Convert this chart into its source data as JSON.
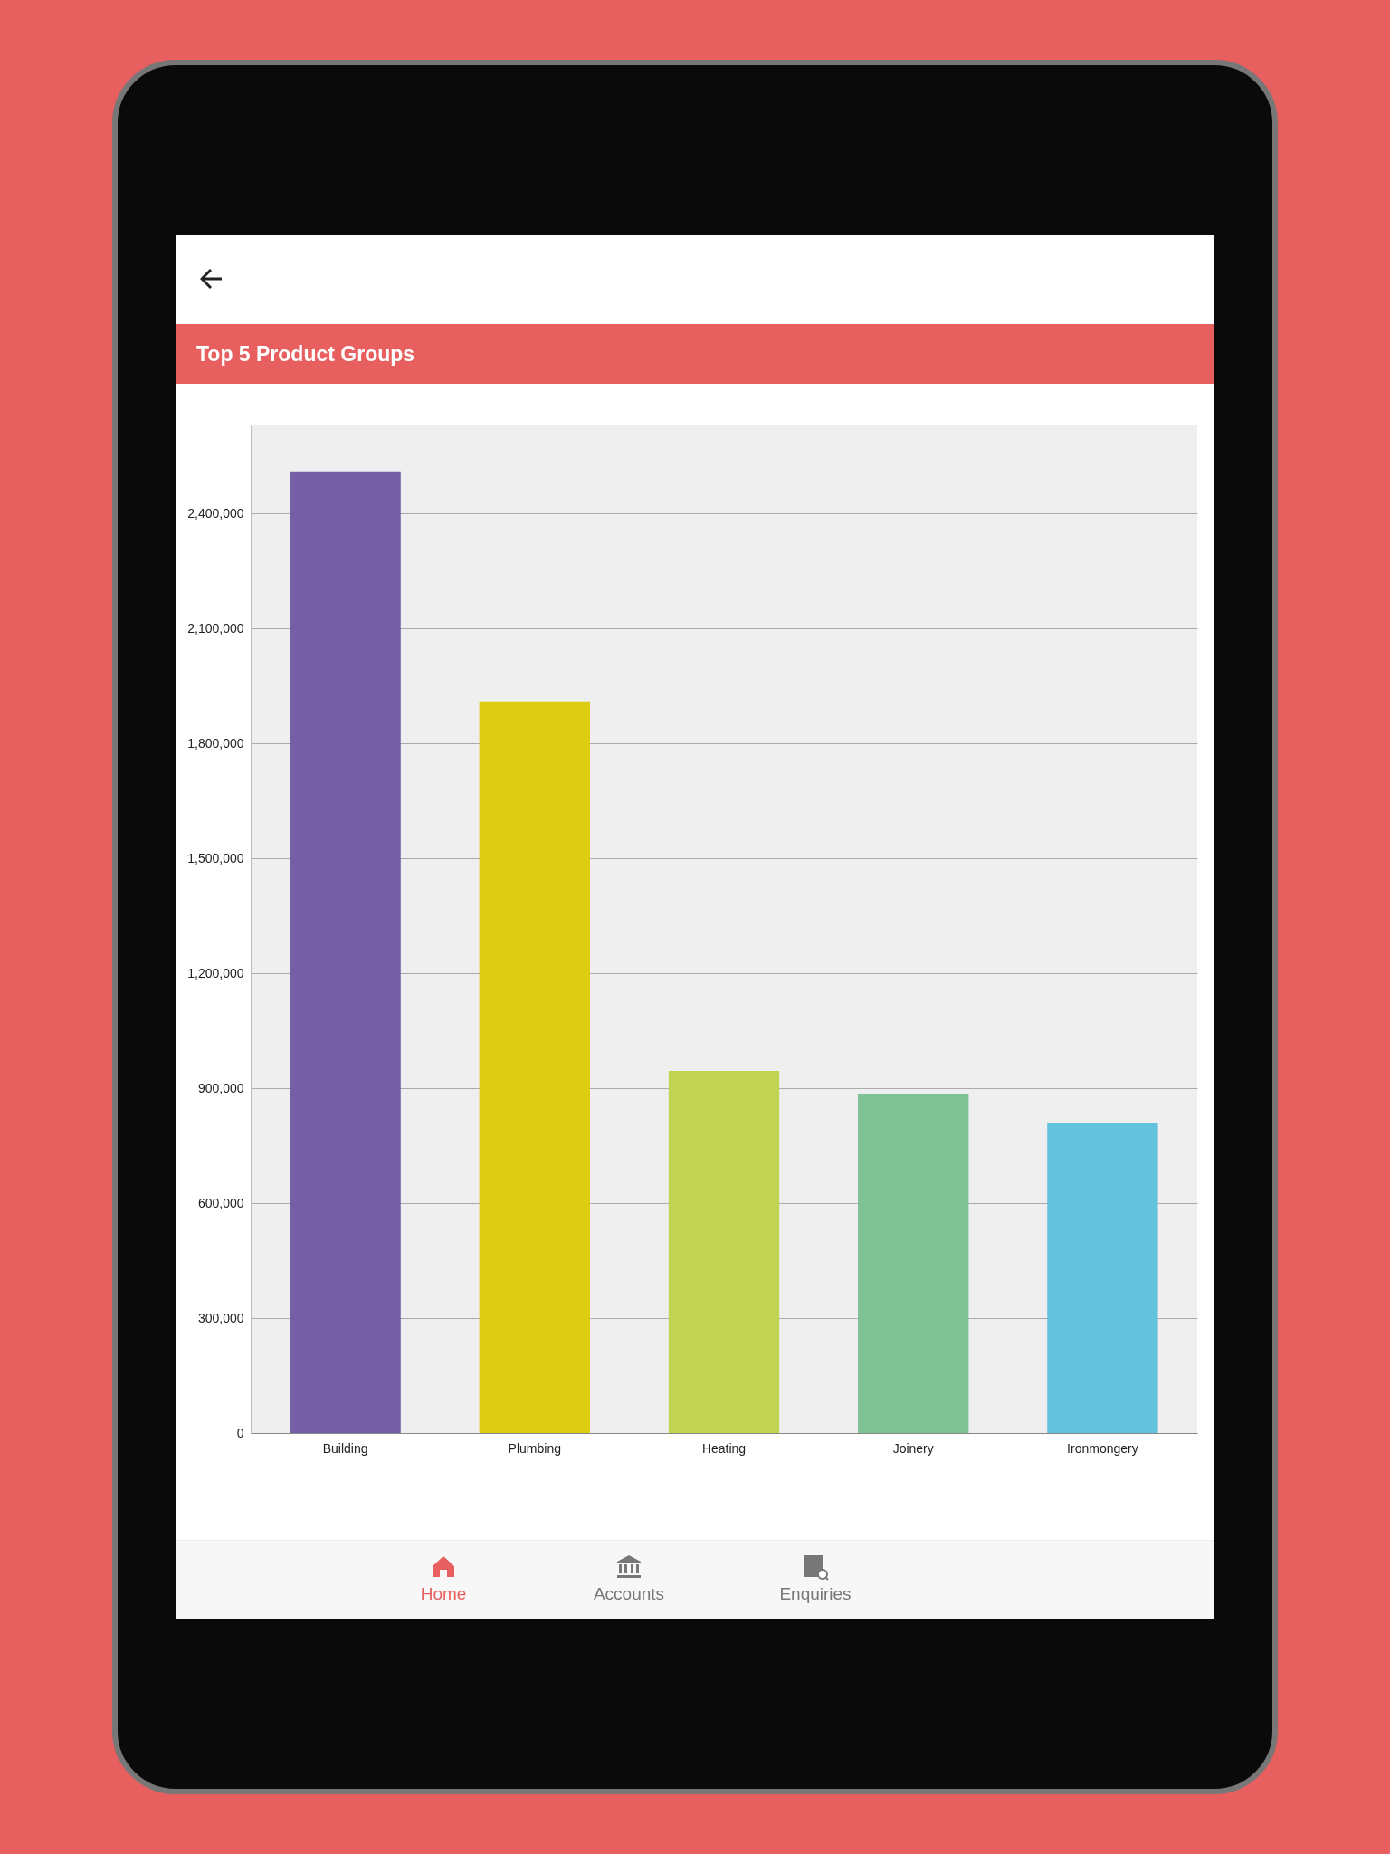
{
  "chart_data": {
    "type": "bar",
    "title": "Top 5 Product Groups",
    "categories": [
      "Building",
      "Plumbing",
      "Heating",
      "Joinery",
      "Ironmongery"
    ],
    "values": [
      2510000,
      1910000,
      945000,
      885000,
      810000
    ],
    "colors": [
      "#7560a6",
      "#dccc12",
      "#c1d351",
      "#7ec296",
      "#63c2de"
    ],
    "ylim": [
      0,
      2630000
    ],
    "yticks": [
      0,
      {
        "value": 300000,
        "label": "300,000"
      },
      {
        "value": 600000,
        "label": "600,000"
      },
      {
        "value": 900000,
        "label": "900,000"
      },
      {
        "value": 1200000,
        "label": "1,200,000"
      },
      {
        "value": 1500000,
        "label": "1,500,000"
      },
      {
        "value": 1800000,
        "label": "1,800,000"
      },
      {
        "value": 2100000,
        "label": "2,100,000"
      },
      {
        "value": 2400000,
        "label": "2,400,000"
      }
    ],
    "grid": "y",
    "annotations": [
      "Home",
      "Accounts",
      "Enquiries"
    ]
  }
}
